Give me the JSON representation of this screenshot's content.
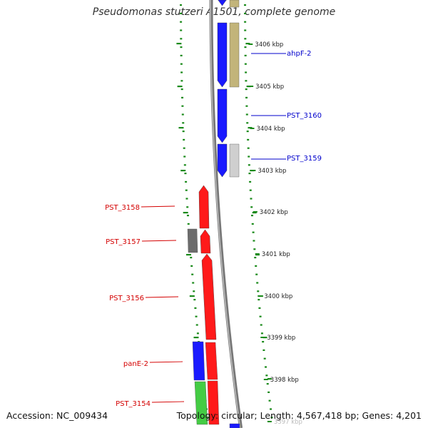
{
  "title": "Pseudomonas stutzeri A1501, complete genome",
  "accession_text": "Accession: NC_009434",
  "topology_text": "Topology: circular; Length: 4,567,418 bp; Genes: 4,201",
  "colors": {
    "forward_cds": "#1a1aff",
    "reverse_cds": "#ff1a1a",
    "label_forward": "#0000cc",
    "label_reverse": "#d40000",
    "gc_ticks": "#1a8a1a",
    "backbone": "#888888",
    "khaki_feature": "#c2b47a",
    "lightgray_feature": "#cfcfcf",
    "darkgray_feature": "#6c6c6c",
    "green_feature": "#44cc44"
  },
  "scale_labels": [
    "3406 kbp",
    "3405 kbp",
    "3404 kbp",
    "3403 kbp",
    "3402 kbp",
    "3401 kbp",
    "3400 kbp",
    "3399 kbp",
    "3398 kbp",
    "3397 kbp"
  ],
  "gene_labels": [
    {
      "name": "ahpF-2",
      "strand": "forward"
    },
    {
      "name": "PST_3160",
      "strand": "forward"
    },
    {
      "name": "PST_3159",
      "strand": "forward"
    },
    {
      "name": "PST_3158",
      "strand": "reverse"
    },
    {
      "name": "PST_3157",
      "strand": "reverse"
    },
    {
      "name": "PST_3156",
      "strand": "reverse"
    },
    {
      "name": "panE-2",
      "strand": "reverse"
    },
    {
      "name": "PST_3154",
      "strand": "reverse"
    }
  ]
}
